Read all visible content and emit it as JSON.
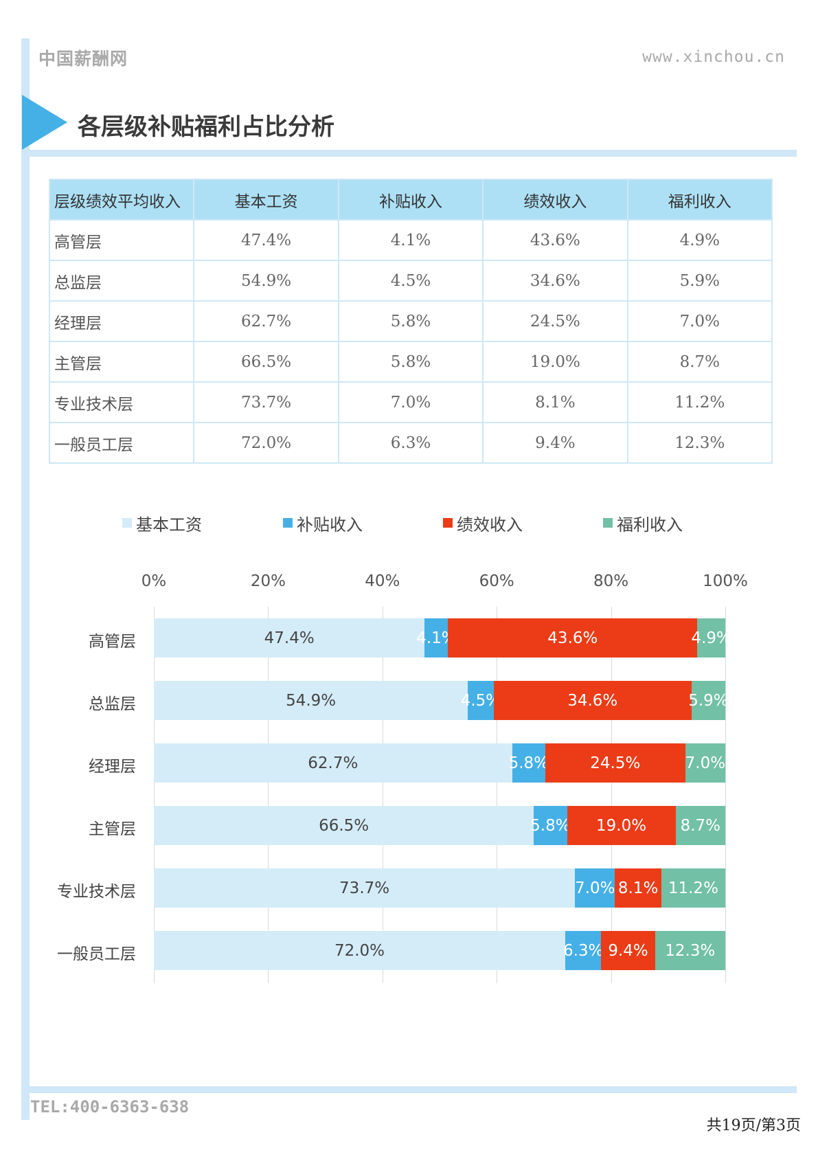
{
  "header": {
    "brand": "中国薪酬网",
    "site": "www.xinchou.cn",
    "title": "各层级补贴福利占比分析"
  },
  "table": {
    "headers": [
      "层级绩效平均收入",
      "基本工资",
      "补贴收入",
      "绩效收入",
      "福利收入"
    ],
    "rows": [
      [
        "高管层",
        "47.4%",
        "4.1%",
        "43.6%",
        "4.9%"
      ],
      [
        "总监层",
        "54.9%",
        "4.5%",
        "34.6%",
        "5.9%"
      ],
      [
        "经理层",
        "62.7%",
        "5.8%",
        "24.5%",
        "7.0%"
      ],
      [
        "主管层",
        "66.5%",
        "5.8%",
        "19.0%",
        "8.7%"
      ],
      [
        "专业技术层",
        "73.7%",
        "7.0%",
        "8.1%",
        "11.2%"
      ],
      [
        "一般员工层",
        "72.0%",
        "6.3%",
        "9.4%",
        "12.3%"
      ]
    ]
  },
  "chart_data": {
    "type": "bar",
    "orientation": "horizontal",
    "stacked": "percent",
    "categories": [
      "高管层",
      "总监层",
      "经理层",
      "主管层",
      "专业技术层",
      "一般员工层"
    ],
    "series": [
      {
        "name": "基本工资",
        "values": [
          47.4,
          54.9,
          62.7,
          66.5,
          73.7,
          72.0
        ],
        "color": "#d4ecf8"
      },
      {
        "name": "补贴收入",
        "values": [
          4.1,
          4.5,
          5.8,
          5.8,
          7.0,
          6.3
        ],
        "color": "#45b0e6"
      },
      {
        "name": "绩效收入",
        "values": [
          43.6,
          34.6,
          24.5,
          19.0,
          8.1,
          9.4
        ],
        "color": "#eb3c17"
      },
      {
        "name": "福利收入",
        "values": [
          4.9,
          5.9,
          7.0,
          8.7,
          11.2,
          12.3
        ],
        "color": "#72c0a6"
      }
    ],
    "xticks": [
      "0%",
      "20%",
      "40%",
      "60%",
      "80%",
      "100%"
    ],
    "xlim": [
      0,
      100
    ],
    "legend_position": "top",
    "grid": true
  },
  "footer": {
    "tel": "TEL:400-6363-638",
    "page": "共19页/第3页"
  }
}
